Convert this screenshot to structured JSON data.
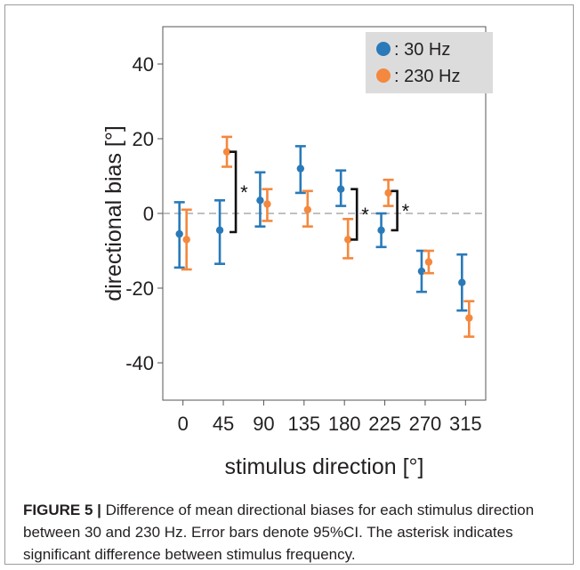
{
  "chart_data": {
    "type": "scatter",
    "xlabel": "stimulus direction [°]",
    "ylabel": "directional bias [°]",
    "categories": [
      "0",
      "45",
      "90",
      "135",
      "180",
      "225",
      "270",
      "315"
    ],
    "yticks": [
      "40",
      "20",
      "0",
      "-20",
      "-40"
    ],
    "ylim": [
      -50,
      50
    ],
    "reference_line": 0,
    "grid": false,
    "legend_position": "top-right",
    "series": [
      {
        "name": ": 30 Hz",
        "color": "#2a7ab9",
        "mean": [
          -5.5,
          -4.5,
          3.5,
          12.0,
          6.5,
          -4.5,
          -15.5,
          -18.5
        ],
        "lower": [
          -14.5,
          -13.5,
          -3.5,
          5.5,
          2.0,
          -9.0,
          -21.0,
          -26.0
        ],
        "upper": [
          3.0,
          3.5,
          11.0,
          18.0,
          11.5,
          0.0,
          -10.0,
          -11.0
        ]
      },
      {
        "name": ": 230 Hz",
        "color": "#f4883e",
        "mean": [
          -7.0,
          16.5,
          2.5,
          1.0,
          -7.0,
          5.5,
          -13.0,
          -28.0
        ],
        "lower": [
          -15.0,
          12.5,
          -2.0,
          -3.5,
          -12.0,
          2.0,
          -16.0,
          -33.0
        ],
        "upper": [
          1.0,
          20.5,
          6.5,
          6.0,
          -1.5,
          9.0,
          -10.0,
          -23.5
        ]
      }
    ],
    "significance": [
      {
        "category": "45",
        "from": 16.5,
        "to": -5.0,
        "label": "*"
      },
      {
        "category": "180",
        "from": 6.5,
        "to": -7.0,
        "label": "*"
      },
      {
        "category": "225",
        "from": 6.0,
        "to": -4.5,
        "label": "*"
      }
    ]
  },
  "caption": {
    "label": "FIGURE 5 |",
    "text": " Difference of mean directional biases for each stimulus direction between 30 and 230 Hz. Error bars denote 95%CI. The asterisk indicates significant difference between stimulus frequency."
  }
}
